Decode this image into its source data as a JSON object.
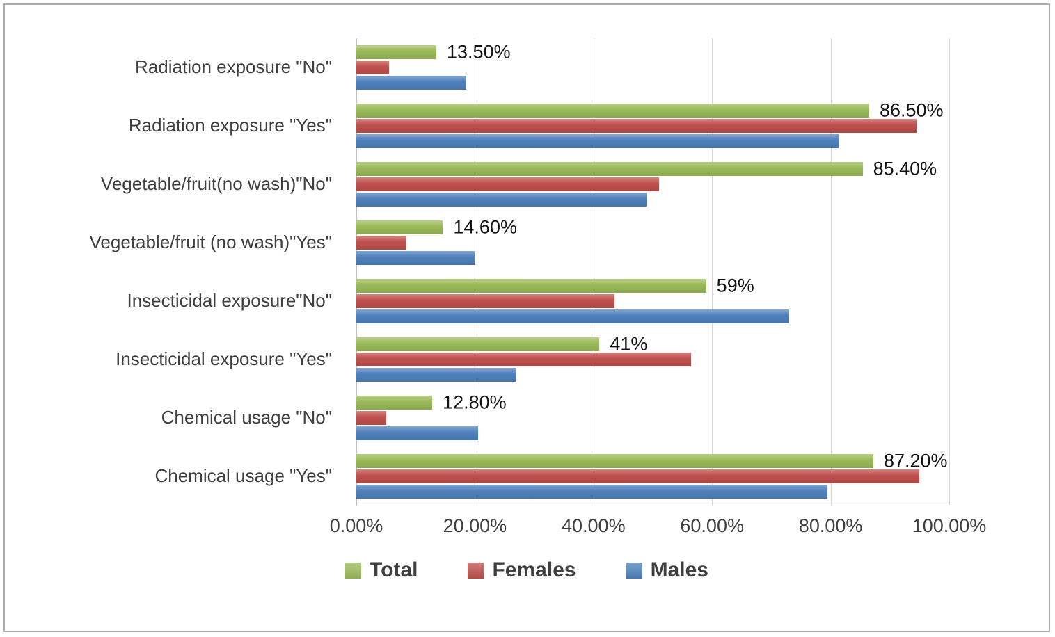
{
  "chart_data": {
    "type": "bar",
    "orientation": "horizontal",
    "title": "",
    "xlabel": "",
    "ylabel": "",
    "xlim": [
      0,
      100
    ],
    "grid": true,
    "legend_position": "bottom",
    "categories": [
      "Radiation exposure \"No\"",
      "Radiation exposure \"Yes\"",
      "Vegetable/fruit(no wash)\"No\"",
      "Vegetable/fruit (no wash)\"Yes\"",
      "Insecticidal exposure\"No\"",
      "Insecticidal exposure \"Yes\"",
      "Chemical usage \"No\"",
      "Chemical usage \"Yes\""
    ],
    "series": [
      {
        "name": "Total",
        "color": "#9bbb59",
        "values": [
          13.5,
          86.5,
          85.4,
          14.6,
          59,
          41,
          12.8,
          87.2
        ]
      },
      {
        "name": "Females",
        "color": "#c0504d",
        "values": [
          5.5,
          94.5,
          51,
          8.5,
          43.5,
          56.5,
          5,
          95
        ]
      },
      {
        "name": "Males",
        "color": "#4f81bd",
        "values": [
          18.5,
          81.5,
          49,
          20,
          73,
          27,
          20.5,
          79.5
        ]
      }
    ],
    "data_labels": [
      "13.50%",
      "86.50%",
      "85.40%",
      "14.60%",
      "59%",
      "41%",
      "12.80%",
      "87.20%"
    ],
    "x_ticks": [
      "0.00%",
      "20.00%",
      "40.00%",
      "60.00%",
      "80.00%",
      "100.00%"
    ]
  }
}
